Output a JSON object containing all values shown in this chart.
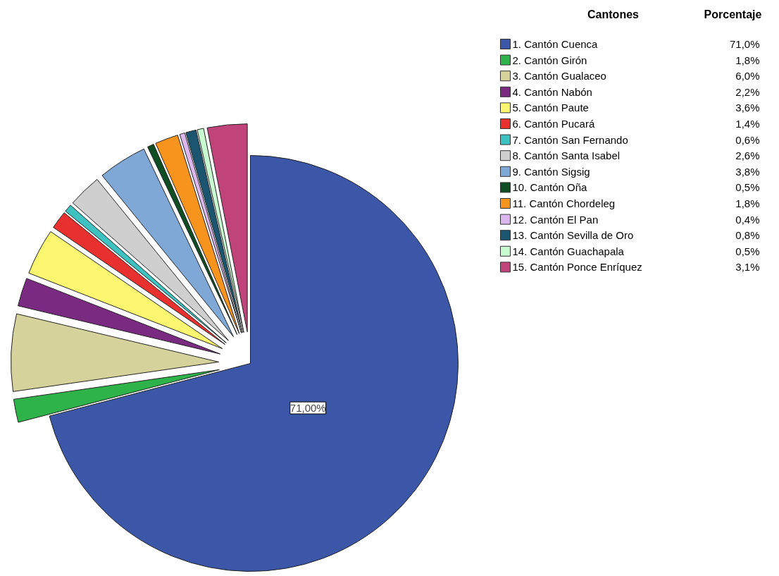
{
  "chart_data": {
    "type": "pie",
    "categories": [
      "1. Cantón Cuenca",
      "2. Cantón Girón",
      "3. Cantón Gualaceo",
      "4. Cantón Nabón",
      "5. Cantón Paute",
      "6. Cantón Pucará",
      "7. Cantón San Fernando",
      "8. Cantón Santa Isabel",
      "9. Cantón Sigsig",
      "10. Cantón Oña",
      "11. Cantón Chordeleg",
      "12. Cantón El Pan",
      "13. Cantón Sevilla de Oro",
      "14. Cantón Guachapala",
      "15. Cantón Ponce Enríquez"
    ],
    "values": [
      71.0,
      1.8,
      6.0,
      2.2,
      3.6,
      1.4,
      0.6,
      2.6,
      3.8,
      0.5,
      1.8,
      0.4,
      0.8,
      0.5,
      3.1
    ],
    "colors": [
      "#3c56a8",
      "#2db34a",
      "#d6d29c",
      "#7a2a80",
      "#fbf66f",
      "#e8302f",
      "#3ec1c1",
      "#cfcfcf",
      "#7fa8d6",
      "#0f4d25",
      "#f7941d",
      "#dcb7ee",
      "#1c5570",
      "#c9fbd1",
      "#c0447a"
    ],
    "value_labels": [
      "71,0%",
      "1,8%",
      "6,0%",
      "2,2%",
      "3,6%",
      "1,4%",
      "0,6%",
      "2,6%",
      "3,8%",
      "0,5%",
      "1,8%",
      "0,4%",
      "0,8%",
      "0,5%",
      "3,1%"
    ],
    "legend_title": "Cantones",
    "annotations": [
      "Porcentaje",
      {
        "text": "71,00%",
        "x": "1. Cantón Cuenca"
      }
    ],
    "legend": "top right"
  }
}
